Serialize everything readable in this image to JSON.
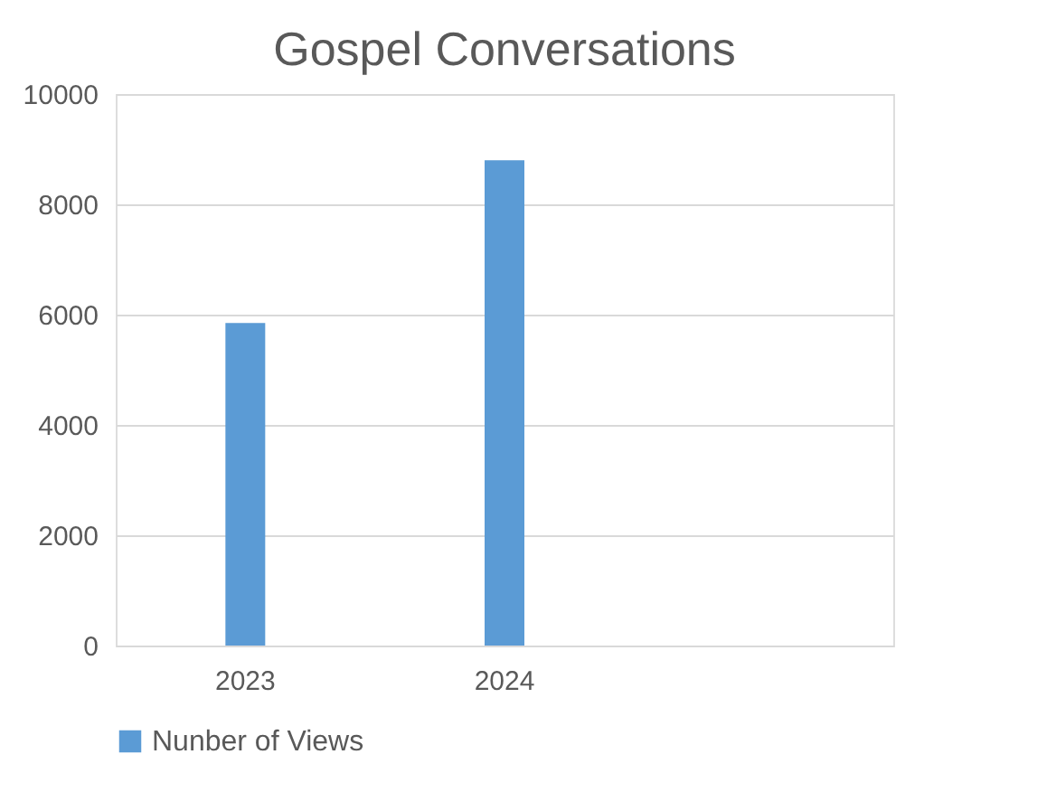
{
  "chart_data": {
    "type": "bar",
    "title": "Gospel Conversations",
    "categories": [
      "2023",
      "2024",
      null
    ],
    "series": [
      {
        "name": "Nunber of Views",
        "color": "#5b9bd5",
        "values": [
          5850,
          8800,
          null
        ]
      }
    ],
    "ylim": [
      0,
      10000
    ],
    "yticks": [
      0,
      2000,
      4000,
      6000,
      8000,
      10000
    ],
    "grid": "y",
    "legend": "bottom"
  }
}
